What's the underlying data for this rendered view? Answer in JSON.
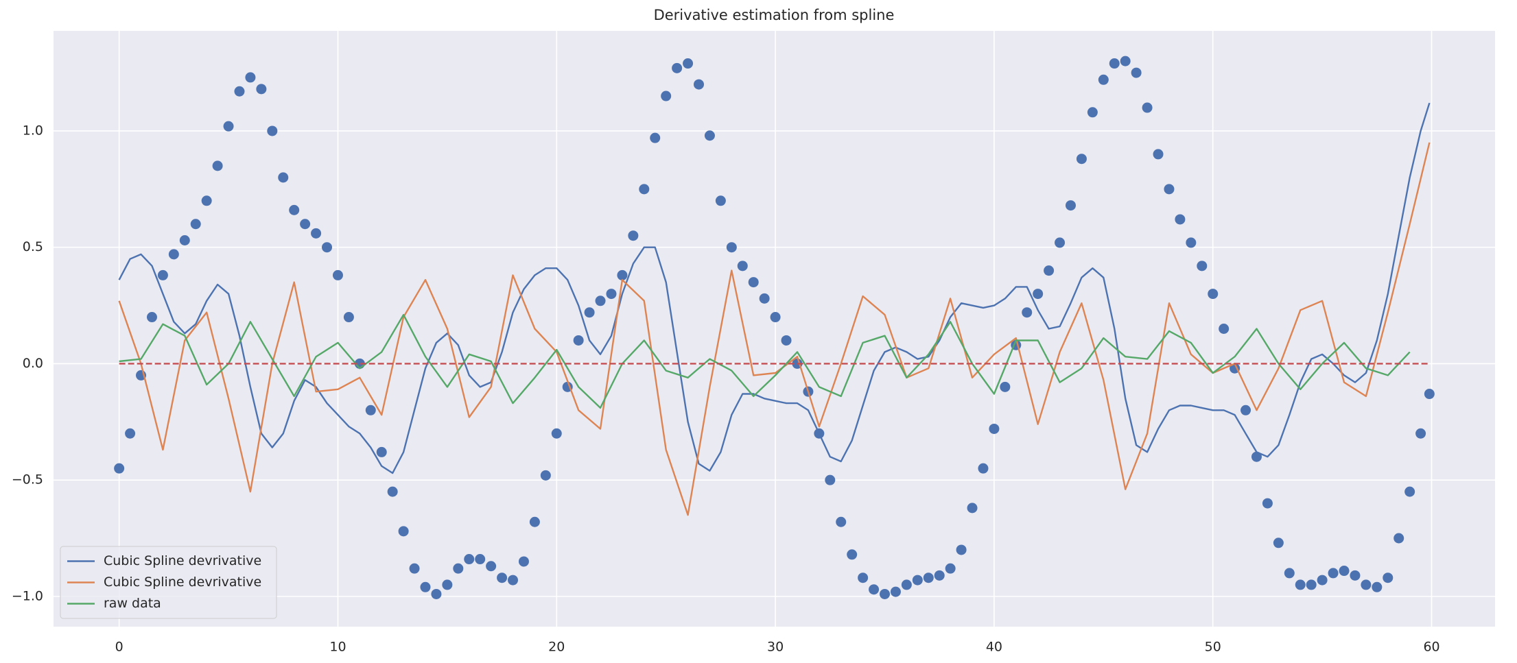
{
  "chart_data": {
    "type": "line",
    "title": "Derivative estimation from spline",
    "xlim": [
      -3.0,
      62.9
    ],
    "ylim": [
      -1.13,
      1.43
    ],
    "xticks": [
      0,
      10,
      20,
      30,
      40,
      50,
      60
    ],
    "yticks": [
      {
        "value": -1.0,
        "label": "−1.0"
      },
      {
        "value": -0.5,
        "label": "−0.5"
      },
      {
        "value": 0.0,
        "label": "0.0"
      },
      0.5,
      {
        "value": 1.0,
        "label": "1.0"
      }
    ],
    "grid": true,
    "legend": "lower left",
    "hline": {
      "value": 0,
      "xmin": 0,
      "xmax": 59.9,
      "color": "#c44e52",
      "style": "dashed"
    },
    "series": [
      {
        "type": "scatter",
        "color": "#4c72b0",
        "x": [
          0,
          0.5,
          1,
          1.5,
          2,
          2.5,
          3,
          3.5,
          4,
          4.5,
          5,
          5.5,
          6,
          6.5,
          7,
          7.5,
          8,
          8.5,
          9,
          9.5,
          10,
          10.5,
          11,
          11.5,
          12,
          12.5,
          13,
          13.5,
          14,
          14.5,
          15,
          15.5,
          16,
          16.5,
          17,
          17.5,
          18,
          18.5,
          19,
          19.5,
          20,
          20.5,
          21,
          21.5,
          22,
          22.5,
          23,
          23.5,
          24,
          24.5,
          25,
          25.5,
          26,
          26.5,
          27,
          27.5,
          28,
          28.5,
          29,
          29.5,
          30,
          30.5,
          31,
          31.5,
          32,
          32.5,
          33,
          33.5,
          34,
          34.5,
          35,
          35.5,
          36,
          36.5,
          37,
          37.5,
          38,
          38.5,
          39,
          39.5,
          40,
          40.5,
          41,
          41.5,
          42,
          42.5,
          43,
          43.5,
          44,
          44.5,
          45,
          45.5,
          46,
          46.5,
          47,
          47.5,
          48,
          48.5,
          49,
          49.5,
          50,
          50.5,
          51,
          51.5,
          52,
          52.5,
          53,
          53.5,
          54,
          54.5,
          55,
          55.5,
          56,
          56.5,
          57,
          57.5,
          58,
          58.5,
          59,
          59.5,
          59.9
        ],
        "values": [
          -0.45,
          -0.3,
          -0.05,
          0.2,
          0.38,
          0.47,
          0.53,
          0.6,
          0.7,
          0.85,
          1.02,
          1.17,
          1.23,
          1.18,
          1.0,
          0.8,
          0.66,
          0.6,
          0.56,
          0.5,
          0.38,
          0.2,
          0.0,
          -0.2,
          -0.38,
          -0.55,
          -0.72,
          -0.88,
          -0.96,
          -0.99,
          -0.95,
          -0.88,
          -0.84,
          -0.84,
          -0.87,
          -0.92,
          -0.93,
          -0.85,
          -0.68,
          -0.48,
          -0.3,
          -0.1,
          0.1,
          0.22,
          0.27,
          0.3,
          0.38,
          0.55,
          0.75,
          0.97,
          1.15,
          1.27,
          1.29,
          1.2,
          0.98,
          0.7,
          0.5,
          0.42,
          0.35,
          0.28,
          0.2,
          0.1,
          0.0,
          -0.12,
          -0.3,
          -0.5,
          -0.68,
          -0.82,
          -0.92,
          -0.97,
          -0.99,
          -0.98,
          -0.95,
          -0.93,
          -0.92,
          -0.91,
          -0.88,
          -0.8,
          -0.62,
          -0.45,
          -0.28,
          -0.1,
          0.08,
          0.22,
          0.3,
          0.4,
          0.52,
          0.68,
          0.88,
          1.08,
          1.22,
          1.29,
          1.3,
          1.25,
          1.1,
          0.9,
          0.75,
          0.62,
          0.52,
          0.42,
          0.3,
          0.15,
          -0.02,
          -0.2,
          -0.4,
          -0.6,
          -0.77,
          -0.9,
          -0.95,
          -0.95,
          -0.93,
          -0.9,
          -0.89,
          -0.91,
          -0.95,
          -0.96,
          -0.92,
          -0.75,
          -0.55,
          -0.3,
          -0.13
        ]
      },
      {
        "type": "line",
        "name": "Cubic Spline devrivative",
        "color": "#4c72b0",
        "x": [
          0,
          0.5,
          1,
          1.5,
          2,
          2.5,
          3,
          3.5,
          4,
          4.5,
          5,
          5.5,
          6,
          6.5,
          7,
          7.5,
          8,
          8.5,
          9,
          9.5,
          10,
          10.5,
          11,
          11.5,
          12,
          12.5,
          13,
          13.5,
          14,
          14.5,
          15,
          15.5,
          16,
          16.5,
          17,
          17.5,
          18,
          18.5,
          19,
          19.5,
          20,
          20.5,
          21,
          21.5,
          22,
          22.5,
          23,
          23.5,
          24,
          24.5,
          25,
          25.5,
          26,
          26.5,
          27,
          27.5,
          28,
          28.5,
          29,
          29.5,
          30,
          30.5,
          31,
          31.5,
          32,
          32.5,
          33,
          33.5,
          34,
          34.5,
          35,
          35.5,
          36,
          36.5,
          37,
          37.5,
          38,
          38.5,
          39,
          39.5,
          40,
          40.5,
          41,
          41.5,
          42,
          42.5,
          43,
          43.5,
          44,
          44.5,
          45,
          45.5,
          46,
          46.5,
          47,
          47.5,
          48,
          48.5,
          49,
          49.5,
          50,
          50.5,
          51,
          51.5,
          52,
          52.5,
          53,
          53.5,
          54,
          54.5,
          55,
          55.5,
          56,
          56.5,
          57,
          57.5,
          58,
          58.5,
          59,
          59.5,
          59.9
        ],
        "values": [
          0.36,
          0.45,
          0.47,
          0.42,
          0.3,
          0.18,
          0.13,
          0.17,
          0.27,
          0.34,
          0.3,
          0.12,
          -0.1,
          -0.3,
          -0.36,
          -0.3,
          -0.16,
          -0.07,
          -0.1,
          -0.17,
          -0.22,
          -0.27,
          -0.3,
          -0.36,
          -0.44,
          -0.47,
          -0.38,
          -0.2,
          -0.02,
          0.09,
          0.13,
          0.08,
          -0.05,
          -0.1,
          -0.08,
          0.05,
          0.22,
          0.32,
          0.38,
          0.41,
          0.41,
          0.36,
          0.25,
          0.1,
          0.04,
          0.12,
          0.3,
          0.43,
          0.5,
          0.5,
          0.35,
          0.05,
          -0.25,
          -0.43,
          -0.46,
          -0.38,
          -0.22,
          -0.13,
          -0.13,
          -0.15,
          -0.16,
          -0.17,
          -0.17,
          -0.2,
          -0.3,
          -0.4,
          -0.42,
          -0.33,
          -0.18,
          -0.03,
          0.05,
          0.07,
          0.05,
          0.02,
          0.03,
          0.1,
          0.2,
          0.26,
          0.25,
          0.24,
          0.25,
          0.28,
          0.33,
          0.33,
          0.23,
          0.15,
          0.16,
          0.26,
          0.37,
          0.41,
          0.37,
          0.15,
          -0.15,
          -0.35,
          -0.38,
          -0.28,
          -0.2,
          -0.18,
          -0.18,
          -0.19,
          -0.2,
          -0.2,
          -0.22,
          -0.3,
          -0.38,
          -0.4,
          -0.35,
          -0.22,
          -0.08,
          0.02,
          0.04,
          0.0,
          -0.05,
          -0.08,
          -0.04,
          0.1,
          0.3,
          0.55,
          0.8,
          1.0,
          1.12
        ]
      },
      {
        "type": "line",
        "name": "Cubic Spline devrivative",
        "color": "#dd8452",
        "x": [
          0,
          1,
          2,
          3,
          4,
          5,
          6,
          7,
          8,
          9,
          10,
          11,
          12,
          13,
          14,
          15,
          16,
          17,
          18,
          19,
          20,
          21,
          22,
          23,
          24,
          25,
          26,
          27,
          28,
          29,
          30,
          31,
          32,
          33,
          34,
          35,
          36,
          37,
          38,
          39,
          40,
          41,
          42,
          43,
          44,
          45,
          46,
          47,
          48,
          49,
          50,
          51,
          52,
          53,
          54,
          55,
          56,
          57,
          58,
          59,
          59.9
        ],
        "values": [
          0.27,
          0.0,
          -0.37,
          0.1,
          0.22,
          -0.15,
          -0.55,
          0.0,
          0.35,
          -0.12,
          -0.11,
          -0.06,
          -0.22,
          0.2,
          0.36,
          0.15,
          -0.23,
          -0.1,
          0.38,
          0.15,
          0.05,
          -0.2,
          -0.28,
          0.36,
          0.27,
          -0.37,
          -0.65,
          -0.1,
          0.4,
          -0.05,
          -0.04,
          0.03,
          -0.27,
          0.0,
          0.29,
          0.21,
          -0.06,
          -0.02,
          0.28,
          -0.06,
          0.04,
          0.11,
          -0.26,
          0.05,
          0.26,
          -0.07,
          -0.54,
          -0.3,
          0.26,
          0.04,
          -0.04,
          0.0,
          -0.2,
          -0.02,
          0.23,
          0.27,
          -0.08,
          -0.14,
          0.22,
          0.6,
          0.95
        ]
      },
      {
        "type": "line",
        "name": "raw data",
        "color": "#55a868",
        "x": [
          0,
          1,
          2,
          3,
          4,
          5,
          6,
          7,
          8,
          9,
          10,
          11,
          12,
          13,
          14,
          15,
          16,
          17,
          18,
          19,
          20,
          21,
          22,
          23,
          24,
          25,
          26,
          27,
          28,
          29,
          30,
          31,
          32,
          33,
          34,
          35,
          36,
          37,
          38,
          39,
          40,
          41,
          42,
          43,
          44,
          45,
          46,
          47,
          48,
          49,
          50,
          51,
          52,
          53,
          54,
          55,
          56,
          57,
          58,
          59
        ],
        "values": [
          0.01,
          0.02,
          0.17,
          0.12,
          -0.09,
          0.0,
          0.18,
          0.02,
          -0.14,
          0.03,
          0.09,
          -0.02,
          0.05,
          0.21,
          0.03,
          -0.1,
          0.04,
          0.01,
          -0.17,
          -0.06,
          0.06,
          -0.1,
          -0.19,
          0.0,
          0.1,
          -0.03,
          -0.06,
          0.02,
          -0.03,
          -0.14,
          -0.05,
          0.05,
          -0.1,
          -0.14,
          0.09,
          0.12,
          -0.06,
          0.04,
          0.18,
          0.0,
          -0.13,
          0.1,
          0.1,
          -0.08,
          -0.02,
          0.11,
          0.03,
          0.02,
          0.14,
          0.09,
          -0.04,
          0.03,
          0.15,
          0.0,
          -0.11,
          0.0,
          0.09,
          -0.02,
          -0.05,
          0.05
        ]
      }
    ]
  }
}
